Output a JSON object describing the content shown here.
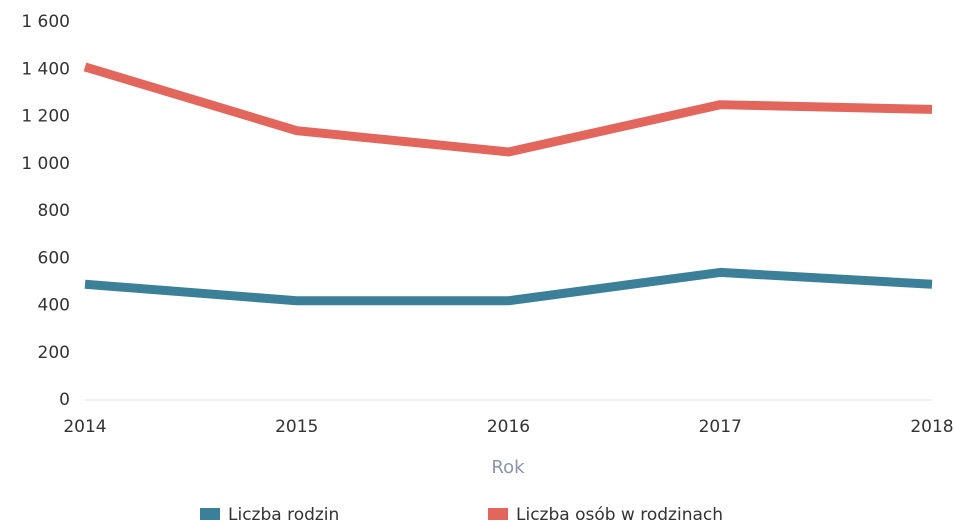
{
  "chart_data": {
    "type": "line",
    "x_label": "Rok",
    "categories": [
      "2014",
      "2015",
      "2016",
      "2017",
      "2018"
    ],
    "series": [
      {
        "name": "Liczba rodzin",
        "color": "#3b7f99",
        "values": [
          490,
          420,
          420,
          540,
          490
        ]
      },
      {
        "name": "Liczba osób w rodzinach",
        "color": "#e2665b",
        "values": [
          1410,
          1140,
          1050,
          1250,
          1230
        ]
      }
    ],
    "ylim": [
      0,
      1600
    ],
    "yticks": [
      0,
      200,
      400,
      600,
      800,
      {
        "value": 1000,
        "label": "1 000"
      },
      {
        "value": 1200,
        "label": "1 200"
      },
      {
        "value": 1400,
        "label": "1 400"
      },
      {
        "value": 1600,
        "label": "1 600"
      }
    ],
    "legend": "bottom"
  }
}
